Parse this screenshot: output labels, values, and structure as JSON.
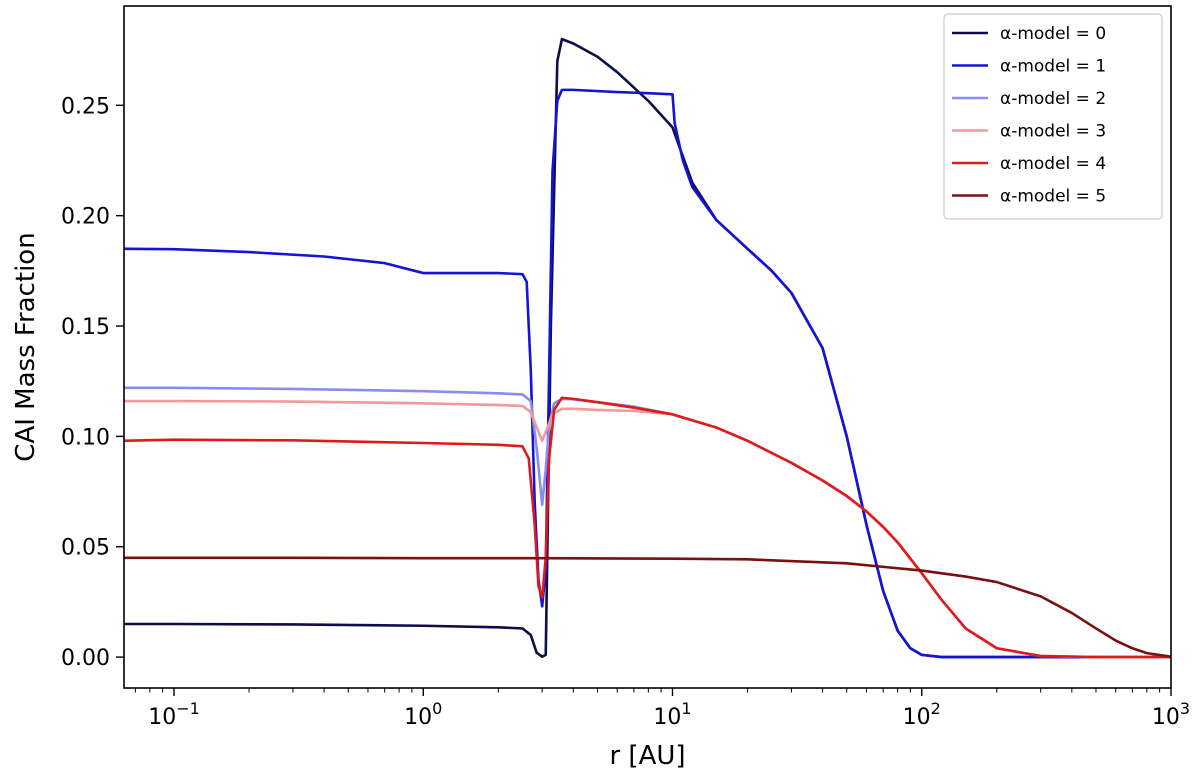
{
  "chart_data": {
    "type": "line",
    "title": "",
    "xlabel": "r [AU]",
    "ylabel": "CAI Mass Fraction",
    "xscale": "log",
    "xlim": [
      0.063,
      1000
    ],
    "ylim": [
      -0.014,
      0.295
    ],
    "grid": false,
    "legend_position": "top-right",
    "x_ticks": [
      {
        "value": 0.1,
        "base": "10",
        "exp": "−1"
      },
      {
        "value": 1,
        "base": "10",
        "exp": "0"
      },
      {
        "value": 10,
        "base": "10",
        "exp": "1"
      },
      {
        "value": 100,
        "base": "10",
        "exp": "2"
      },
      {
        "value": 1000,
        "base": "10",
        "exp": "3"
      }
    ],
    "y_ticks": [
      {
        "value": 0.0,
        "label": "0.00"
      },
      {
        "value": 0.05,
        "label": "0.05"
      },
      {
        "value": 0.1,
        "label": "0.10"
      },
      {
        "value": 0.15,
        "label": "0.15"
      },
      {
        "value": 0.2,
        "label": "0.20"
      },
      {
        "value": 0.25,
        "label": "0.25"
      }
    ],
    "series": [
      {
        "name": "α-model = 0",
        "color": "#0d0d4a",
        "x": [
          0.063,
          0.1,
          0.3,
          1,
          2,
          2.5,
          2.7,
          2.85,
          3.0,
          3.1,
          3.25,
          3.45,
          3.6,
          4,
          5,
          6,
          8,
          10,
          12,
          15,
          20,
          25,
          30,
          40,
          50,
          60,
          70,
          80,
          90,
          100,
          120,
          150,
          200,
          300,
          500,
          1000
        ],
        "y": [
          0.015,
          0.015,
          0.0148,
          0.0142,
          0.0135,
          0.013,
          0.01,
          0.002,
          0.0002,
          0.001,
          0.15,
          0.27,
          0.28,
          0.278,
          0.272,
          0.265,
          0.252,
          0.24,
          0.215,
          0.198,
          0.185,
          0.175,
          0.165,
          0.14,
          0.1,
          0.06,
          0.03,
          0.012,
          0.004,
          0.001,
          0.0,
          0.0,
          0.0,
          0.0,
          0.0,
          0.0
        ]
      },
      {
        "name": "α-model = 1",
        "color": "#1414d6",
        "x": [
          0.063,
          0.1,
          0.2,
          0.4,
          0.7,
          1,
          1.5,
          2,
          2.5,
          2.6,
          2.7,
          2.8,
          2.9,
          3.0,
          3.1,
          3.2,
          3.3,
          3.45,
          3.6,
          4,
          6,
          8,
          10,
          10.2,
          11,
          12,
          15,
          20,
          25,
          30,
          40,
          50,
          60,
          70,
          80,
          90,
          100,
          120,
          150,
          200,
          300,
          1000
        ],
        "y": [
          0.185,
          0.1848,
          0.1835,
          0.1815,
          0.1785,
          0.174,
          0.174,
          0.174,
          0.1735,
          0.17,
          0.13,
          0.07,
          0.035,
          0.023,
          0.04,
          0.13,
          0.22,
          0.252,
          0.257,
          0.257,
          0.256,
          0.2555,
          0.255,
          0.242,
          0.225,
          0.213,
          0.198,
          0.185,
          0.175,
          0.165,
          0.14,
          0.1,
          0.06,
          0.03,
          0.012,
          0.004,
          0.001,
          0.0,
          0.0,
          0.0,
          0.0,
          0.0
        ]
      },
      {
        "name": "α-model = 2",
        "color": "#8a8cf0",
        "x": [
          0.063,
          0.1,
          0.3,
          1,
          2,
          2.5,
          2.7,
          2.85,
          3.0,
          3.1,
          3.2,
          3.35,
          3.6,
          4,
          5,
          7,
          10,
          15,
          20,
          30,
          40,
          50,
          60,
          70,
          80,
          100,
          120,
          150,
          200,
          300,
          500,
          1000
        ],
        "y": [
          0.122,
          0.122,
          0.1215,
          0.1205,
          0.1195,
          0.119,
          0.116,
          0.095,
          0.069,
          0.085,
          0.105,
          0.115,
          0.117,
          0.1168,
          0.1155,
          0.1135,
          0.11,
          0.104,
          0.098,
          0.088,
          0.08,
          0.073,
          0.066,
          0.059,
          0.052,
          0.038,
          0.026,
          0.013,
          0.004,
          0.0005,
          0.0,
          0.0
        ]
      },
      {
        "name": "α-model = 3",
        "color": "#f29a9a",
        "x": [
          0.063,
          0.1,
          0.3,
          1,
          2,
          2.5,
          2.7,
          2.9,
          3.0,
          3.15,
          3.3,
          3.6,
          4,
          5,
          7,
          10,
          15,
          20,
          30,
          40,
          50,
          60,
          70,
          80,
          100,
          120,
          150,
          200,
          300,
          500,
          1000
        ],
        "y": [
          0.116,
          0.116,
          0.1158,
          0.115,
          0.1142,
          0.1138,
          0.111,
          0.102,
          0.098,
          0.104,
          0.11,
          0.1125,
          0.1125,
          0.112,
          0.1115,
          0.11,
          0.104,
          0.098,
          0.088,
          0.08,
          0.073,
          0.066,
          0.059,
          0.052,
          0.038,
          0.026,
          0.013,
          0.004,
          0.0005,
          0.0,
          0.0
        ]
      },
      {
        "name": "α-model = 4",
        "color": "#e01a1a",
        "x": [
          0.063,
          0.1,
          0.3,
          1,
          2,
          2.5,
          2.65,
          2.8,
          2.9,
          3.0,
          3.1,
          3.2,
          3.35,
          3.6,
          4,
          5,
          7,
          10,
          15,
          20,
          30,
          40,
          50,
          60,
          70,
          80,
          100,
          120,
          150,
          200,
          300,
          500,
          1000
        ],
        "y": [
          0.098,
          0.0985,
          0.0982,
          0.097,
          0.0962,
          0.0955,
          0.09,
          0.06,
          0.032,
          0.027,
          0.045,
          0.09,
          0.112,
          0.1175,
          0.117,
          0.1155,
          0.113,
          0.11,
          0.104,
          0.098,
          0.088,
          0.08,
          0.073,
          0.066,
          0.059,
          0.052,
          0.038,
          0.026,
          0.013,
          0.004,
          0.0005,
          0.0,
          0.0
        ]
      },
      {
        "name": "α-model = 5",
        "color": "#7a1010",
        "x": [
          0.063,
          0.1,
          0.3,
          1,
          3,
          10,
          20,
          50,
          100,
          150,
          200,
          300,
          400,
          500,
          600,
          700,
          800,
          1000
        ],
        "y": [
          0.045,
          0.045,
          0.045,
          0.0448,
          0.0448,
          0.0446,
          0.0443,
          0.0425,
          0.0392,
          0.0365,
          0.034,
          0.0275,
          0.02,
          0.013,
          0.0075,
          0.004,
          0.0018,
          0.0002
        ]
      }
    ]
  }
}
